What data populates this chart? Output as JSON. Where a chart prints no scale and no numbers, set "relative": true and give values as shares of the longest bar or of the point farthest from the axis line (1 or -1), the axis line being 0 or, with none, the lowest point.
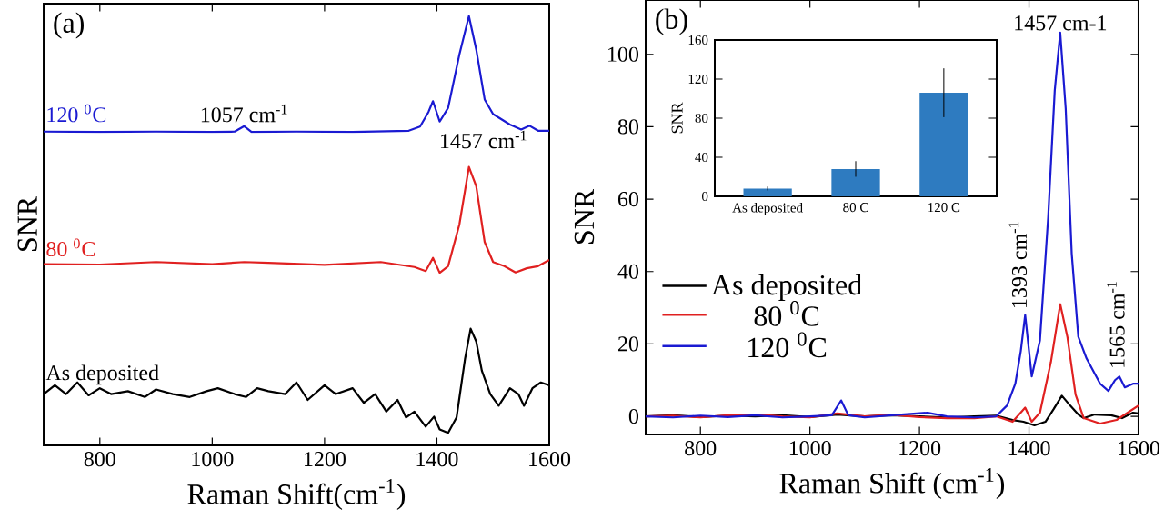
{
  "chart_data": [
    {
      "type": "line",
      "relative": true,
      "tick_labels": "x",
      "xlabel": "Raman Shift(cm$^{-1}$)",
      "ylabel": "SNR",
      "xlim": [
        700,
        1600
      ],
      "xticks": [
        800,
        1000,
        1200,
        1400,
        1600
      ],
      "legend": false,
      "annotations": [
        "(a)",
        {
          "text": "1057 cm$^{-1}$",
          "x": 1057,
          "y": 0.736
        },
        {
          "text": "1457 cm$^{-1}$",
          "x": 1457,
          "y": 0.638
        }
      ],
      "series": [
        {
          "name": "120 $^{0}$C",
          "color": "#1a1ad2",
          "x": [
            700,
            800,
            900,
            1000,
            1040,
            1057,
            1070,
            1150,
            1250,
            1350,
            1370,
            1385,
            1393,
            1405,
            1420,
            1440,
            1457,
            1470,
            1485,
            1500,
            1530,
            1550,
            1565,
            1580,
            1600
          ],
          "values": [
            0.723,
            0.722,
            0.723,
            0.722,
            0.723,
            0.736,
            0.722,
            0.723,
            0.722,
            0.725,
            0.735,
            0.77,
            0.796,
            0.747,
            0.78,
            0.908,
            1.0,
            0.92,
            0.8,
            0.765,
            0.74,
            0.728,
            0.737,
            0.725,
            0.725
          ]
        },
        {
          "name": "80 $^{0}$C",
          "color": "#e02020",
          "x": [
            700,
            800,
            900,
            1000,
            1057,
            1100,
            1200,
            1300,
            1360,
            1380,
            1393,
            1405,
            1420,
            1440,
            1457,
            1470,
            1485,
            1500,
            1520,
            1540,
            1560,
            1580,
            1600
          ],
          "values": [
            0.405,
            0.404,
            0.41,
            0.405,
            0.41,
            0.408,
            0.403,
            0.41,
            0.398,
            0.388,
            0.42,
            0.384,
            0.4,
            0.5,
            0.638,
            0.592,
            0.458,
            0.41,
            0.4,
            0.385,
            0.395,
            0.4,
            0.415
          ]
        },
        {
          "name": "As deposited",
          "color": "#000000",
          "x": [
            700,
            720,
            740,
            760,
            780,
            800,
            820,
            850,
            880,
            900,
            930,
            960,
            990,
            1010,
            1040,
            1060,
            1080,
            1100,
            1130,
            1150,
            1170,
            1200,
            1220,
            1250,
            1270,
            1290,
            1310,
            1330,
            1345,
            1360,
            1380,
            1395,
            1405,
            1420,
            1435,
            1450,
            1460,
            1470,
            1480,
            1495,
            1510,
            1530,
            1545,
            1555,
            1570,
            1585,
            1600
          ],
          "values": [
            0.093,
            0.114,
            0.093,
            0.121,
            0.09,
            0.107,
            0.093,
            0.1,
            0.086,
            0.104,
            0.093,
            0.086,
            0.1,
            0.107,
            0.093,
            0.086,
            0.107,
            0.1,
            0.093,
            0.121,
            0.079,
            0.114,
            0.093,
            0.107,
            0.072,
            0.093,
            0.051,
            0.079,
            0.037,
            0.051,
            0.015,
            0.039,
            0.008,
            0.0,
            0.037,
            0.177,
            0.25,
            0.219,
            0.149,
            0.093,
            0.065,
            0.107,
            0.093,
            0.065,
            0.107,
            0.121,
            0.114
          ]
        }
      ]
    },
    {
      "type": "line",
      "xlabel": "Raman Shift (cm$^{-1}$)",
      "ylabel": "SNR",
      "xlim": [
        700,
        1600
      ],
      "xticks": [
        800,
        1000,
        1200,
        1400,
        1600
      ],
      "ylim": [
        -5,
        115
      ],
      "yticks": [
        0,
        20,
        40,
        60,
        80,
        100
      ],
      "legend": "left",
      "annotations": [
        "(b)",
        {
          "text": "1457 cm-1",
          "x": 1457,
          "y": 106
        },
        {
          "text": "1393 cm$^{-1}$",
          "x": 1393,
          "y": 28
        },
        {
          "text": "1565 cm$^{-1}$",
          "x": 1565,
          "y": 11
        }
      ],
      "series": [
        {
          "name": "As deposited",
          "color": "#000000",
          "x": [
            700,
            750,
            800,
            850,
            900,
            950,
            1000,
            1050,
            1100,
            1150,
            1200,
            1250,
            1300,
            1340,
            1370,
            1390,
            1410,
            1430,
            1445,
            1460,
            1475,
            1490,
            1500,
            1520,
            1550,
            1570,
            1590,
            1600
          ],
          "values": [
            0,
            0.3,
            -0.2,
            0.2,
            0,
            0.3,
            -0.2,
            0.5,
            0,
            0.3,
            0,
            -0.3,
            0,
            0.2,
            -1,
            -1.5,
            -2.5,
            -1.5,
            2,
            5.7,
            3,
            0.5,
            -0.5,
            0.5,
            0.3,
            -0.5,
            1,
            0.8
          ]
        },
        {
          "name": "80 $^{0}$C",
          "color": "#e02020",
          "x": [
            700,
            750,
            800,
            850,
            900,
            950,
            1000,
            1050,
            1100,
            1150,
            1200,
            1250,
            1300,
            1340,
            1370,
            1393,
            1405,
            1420,
            1440,
            1457,
            1470,
            1485,
            1500,
            1530,
            1560,
            1580,
            1600
          ],
          "values": [
            0,
            0.2,
            -0.3,
            0.3,
            0.5,
            0,
            -0.3,
            0.8,
            0,
            0.4,
            -0.2,
            -0.5,
            -0.5,
            0,
            -1.5,
            2.4,
            -1.5,
            1,
            15,
            31,
            22,
            6,
            -0.5,
            -2,
            -1,
            1,
            3
          ]
        },
        {
          "name": "120 $^{0}$C",
          "color": "#1a1ad2",
          "x": [
            700,
            750,
            800,
            850,
            900,
            950,
            1000,
            1040,
            1057,
            1070,
            1100,
            1150,
            1215,
            1250,
            1300,
            1340,
            1360,
            1375,
            1385,
            1393,
            1405,
            1420,
            1435,
            1447,
            1457,
            1467,
            1478,
            1490,
            1505,
            1530,
            1545,
            1557,
            1565,
            1575,
            1590,
            1600
          ],
          "values": [
            0,
            -0.3,
            0.2,
            -0.2,
            0.3,
            -0.3,
            0,
            0.3,
            4.4,
            0.3,
            -0.3,
            0.3,
            1,
            0,
            -0.3,
            0,
            3,
            9,
            18,
            28,
            11,
            21,
            55,
            90,
            106,
            85,
            45,
            22,
            16,
            9,
            7,
            10,
            11,
            8,
            9,
            9
          ]
        }
      ]
    },
    {
      "type": "bar",
      "ylabel": "SNR",
      "categories": [
        "As deposited",
        "80 C",
        "120 C"
      ],
      "values": [
        8,
        28,
        106
      ],
      "errors": [
        2,
        8,
        25
      ],
      "color": "#2e7bc0",
      "ylim": [
        0,
        160
      ],
      "yticks": [
        0,
        40,
        80,
        120,
        160
      ]
    }
  ]
}
